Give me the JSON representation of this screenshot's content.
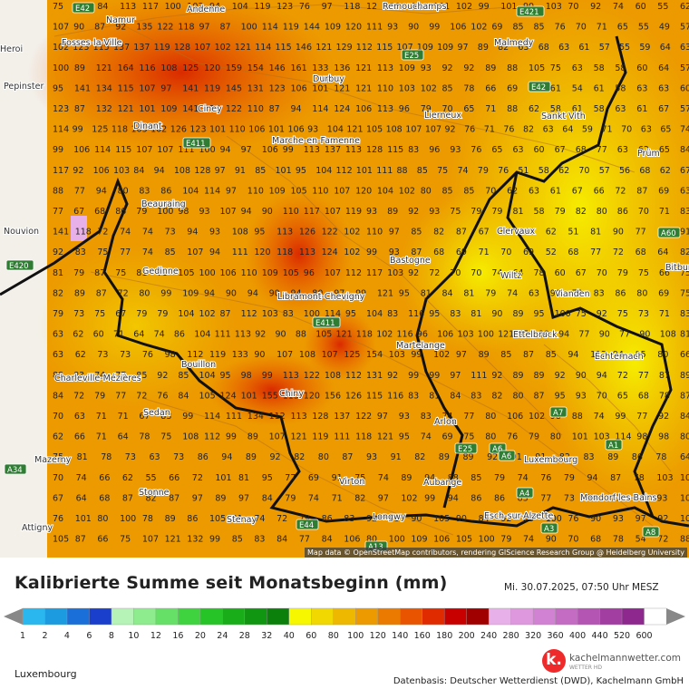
{
  "title": "Kalibrierte Summe seit Monatsbeginn (mm)",
  "timestamp": "Mi. 30.07.2025, 07:50 Uhr MESZ",
  "region": "Luxembourg",
  "datasource": "Datenbasis: Deutscher Wetterdienst (DWD), Kachelmann GmbH",
  "attribution": "Map data © OpenStreetMap contributors, rendering GIScience Research Group @ Heidelberg University",
  "logo": {
    "mark": "k.",
    "name": "kachelmannwetter.com",
    "sub": "WETTER HD"
  },
  "legend": {
    "ticks": [
      "1",
      "2",
      "4",
      "6",
      "8",
      "10",
      "12",
      "16",
      "20",
      "24",
      "28",
      "32",
      "40",
      "60",
      "80",
      "100",
      "120",
      "140",
      "160",
      "180",
      "200",
      "240",
      "280",
      "320",
      "360",
      "400",
      "440",
      "520",
      "600"
    ],
    "colors": [
      "#2ab6ee",
      "#1d9be0",
      "#1a6fd8",
      "#1a3fcc",
      "#b6f3b6",
      "#8eeb8e",
      "#67e067",
      "#3fd43f",
      "#27c427",
      "#19ad19",
      "#119611",
      "#0b800b",
      "#f7f700",
      "#f1d800",
      "#eeb800",
      "#ec9a00",
      "#ea7a00",
      "#e85400",
      "#e02a00",
      "#c80000",
      "#a00000",
      "#e8b0e8",
      "#de98de",
      "#d282d2",
      "#c46cc4",
      "#b455b4",
      "#a23ea2",
      "#8e288e",
      "#ffffff"
    ]
  },
  "places": [
    {
      "name": "Namur"
    },
    {
      "name": "Andenne"
    },
    {
      "name": "Remouchamps"
    },
    {
      "name": "Fosses-la-Ville"
    },
    {
      "name": "Malmedy"
    },
    {
      "name": "Durbuy"
    },
    {
      "name": "Ciney"
    },
    {
      "name": "Dinant"
    },
    {
      "name": "Lierneux"
    },
    {
      "name": "Sankt Vith"
    },
    {
      "name": "Marche-en-Famenne"
    },
    {
      "name": "Prüm"
    },
    {
      "name": "Beauraing"
    },
    {
      "name": "Clervaux"
    },
    {
      "name": "Gedinne"
    },
    {
      "name": "Bastogne"
    },
    {
      "name": "Wiltz"
    },
    {
      "name": "Vianden"
    },
    {
      "name": "Libramont-Chevigny"
    },
    {
      "name": "Ettelbruck"
    },
    {
      "name": "Echternach"
    },
    {
      "name": "Martelange"
    },
    {
      "name": "Bouillon"
    },
    {
      "name": "Charleville-Mézières"
    },
    {
      "name": "Chiny"
    },
    {
      "name": "Sedan"
    },
    {
      "name": "Arlon"
    },
    {
      "name": "Luxembourg"
    },
    {
      "name": "Mazerny"
    },
    {
      "name": "Virton"
    },
    {
      "name": "Aubange"
    },
    {
      "name": "Stonne"
    },
    {
      "name": "Mondorf-les-Bains"
    },
    {
      "name": "Esch-sur-Alzette"
    },
    {
      "name": "Stenay"
    },
    {
      "name": "Longwy"
    },
    {
      "name": "Attigny"
    },
    {
      "name": "Pepinster"
    },
    {
      "name": "Nouvion"
    },
    {
      "name": "Bitburg"
    },
    {
      "name": "Heroi"
    }
  ],
  "highways": [
    "E42",
    "E421",
    "E25",
    "E42",
    "E411",
    "E420",
    "E411",
    "A60",
    "E25",
    "A6",
    "A7",
    "A1",
    "A4",
    "A3",
    "A8",
    "A34",
    "E44",
    "A6",
    "A13"
  ],
  "grid_values": [
    [
      "75",
      "E42",
      "84",
      "113",
      "117",
      "100",
      "103",
      "94",
      "104",
      "119",
      "123",
      "76",
      "97",
      "118",
      "12",
      "96",
      "90",
      "101",
      "102",
      "99",
      "101",
      "90",
      "103",
      "70",
      "92",
      "74",
      "60",
      "55",
      "62"
    ],
    [
      "107",
      "90",
      "87",
      "92",
      "135",
      "122",
      "118",
      "97",
      "87",
      "100",
      "114",
      "119",
      "144",
      "109",
      "120",
      "111",
      "93",
      "90",
      "99",
      "106",
      "102",
      "69",
      "85",
      "85",
      "76",
      "70",
      "71",
      "65",
      "55",
      "49",
      "57"
    ],
    [
      "102",
      "123",
      "115",
      "137",
      "137",
      "119",
      "128",
      "107",
      "102",
      "121",
      "114",
      "115",
      "146",
      "121",
      "129",
      "112",
      "115",
      "107",
      "109",
      "109",
      "97",
      "89",
      "82",
      "63",
      "68",
      "63",
      "61",
      "57",
      "55",
      "59",
      "64",
      "63"
    ],
    [
      "100",
      "89",
      "121",
      "164",
      "116",
      "108",
      "125",
      "120",
      "159",
      "154",
      "146",
      "161",
      "133",
      "136",
      "121",
      "113",
      "109",
      "93",
      "92",
      "92",
      "89",
      "88",
      "105",
      "75",
      "63",
      "58",
      "58",
      "60",
      "64",
      "57"
    ],
    [
      "95",
      "141",
      "134",
      "115",
      "107",
      "97",
      "141",
      "119",
      "145",
      "131",
      "123",
      "106",
      "101",
      "121",
      "121",
      "110",
      "103",
      "102",
      "85",
      "78",
      "66",
      "69",
      "83",
      "61",
      "54",
      "61",
      "58",
      "63",
      "63",
      "60"
    ],
    [
      "123",
      "87",
      "132",
      "121",
      "101",
      "109",
      "141",
      "124",
      "122",
      "110",
      "87",
      "94",
      "114",
      "124",
      "106",
      "113",
      "96",
      "79",
      "70",
      "65",
      "71",
      "88",
      "62",
      "58",
      "61",
      "58",
      "63",
      "61",
      "67",
      "57"
    ],
    [
      "114",
      "99",
      "125",
      "118",
      "105",
      "102",
      "126",
      "123",
      "101",
      "110",
      "106",
      "101",
      "106",
      "93",
      "104",
      "121",
      "105",
      "108",
      "107",
      "107",
      "92",
      "76",
      "71",
      "76",
      "82",
      "63",
      "64",
      "59",
      "71",
      "70",
      "63",
      "65",
      "74"
    ],
    [
      "99",
      "106",
      "114",
      "115",
      "107",
      "107",
      "111",
      "100",
      "94",
      "97",
      "106",
      "99",
      "113",
      "137",
      "113",
      "128",
      "115",
      "83",
      "96",
      "93",
      "76",
      "65",
      "63",
      "60",
      "67",
      "68",
      "77",
      "63",
      "62",
      "65",
      "84"
    ],
    [
      "117",
      "92",
      "106",
      "103",
      "84",
      "94",
      "108",
      "128",
      "97",
      "91",
      "85",
      "101",
      "95",
      "104",
      "112",
      "101",
      "111",
      "88",
      "85",
      "75",
      "74",
      "79",
      "76",
      "51",
      "58",
      "62",
      "70",
      "57",
      "56",
      "68",
      "62",
      "67"
    ],
    [
      "88",
      "77",
      "94",
      "80",
      "83",
      "86",
      "104",
      "114",
      "97",
      "110",
      "109",
      "105",
      "110",
      "107",
      "120",
      "104",
      "102",
      "80",
      "85",
      "85",
      "70",
      "62",
      "63",
      "61",
      "67",
      "66",
      "72",
      "87",
      "69",
      "63"
    ],
    [
      "77",
      "67",
      "68",
      "86",
      "79",
      "100",
      "98",
      "93",
      "107",
      "94",
      "90",
      "110",
      "117",
      "107",
      "119",
      "93",
      "89",
      "92",
      "93",
      "75",
      "79",
      "79",
      "81",
      "58",
      "79",
      "82",
      "80",
      "86",
      "70",
      "71",
      "83"
    ],
    [
      "141",
      "118",
      "72",
      "74",
      "74",
      "73",
      "94",
      "93",
      "108",
      "95",
      "113",
      "126",
      "122",
      "102",
      "110",
      "97",
      "85",
      "82",
      "87",
      "67",
      "69",
      "63",
      "62",
      "51",
      "81",
      "90",
      "77",
      "66",
      "91"
    ],
    [
      "92",
      "83",
      "75",
      "77",
      "74",
      "85",
      "107",
      "94",
      "111",
      "120",
      "118",
      "113",
      "124",
      "102",
      "99",
      "93",
      "87",
      "68",
      "69",
      "71",
      "70",
      "69",
      "52",
      "68",
      "77",
      "72",
      "68",
      "64",
      "82"
    ],
    [
      "81",
      "79",
      "87",
      "75",
      "81",
      "79",
      "105",
      "100",
      "106",
      "110",
      "109",
      "105",
      "96",
      "107",
      "112",
      "117",
      "103",
      "92",
      "72",
      "70",
      "70",
      "74",
      "64",
      "78",
      "60",
      "67",
      "70",
      "79",
      "75",
      "66",
      "75"
    ],
    [
      "82",
      "89",
      "87",
      "72",
      "80",
      "99",
      "109",
      "94",
      "90",
      "94",
      "90",
      "94",
      "80",
      "97",
      "99",
      "121",
      "95",
      "81",
      "84",
      "81",
      "79",
      "74",
      "63",
      "90",
      "79",
      "83",
      "86",
      "80",
      "69",
      "75"
    ],
    [
      "79",
      "73",
      "75",
      "67",
      "79",
      "79",
      "104",
      "102",
      "87",
      "112",
      "103",
      "83",
      "100",
      "114",
      "95",
      "104",
      "83",
      "116",
      "95",
      "83",
      "81",
      "90",
      "89",
      "95",
      "100",
      "75",
      "92",
      "75",
      "73",
      "71",
      "83"
    ],
    [
      "63",
      "62",
      "60",
      "71",
      "64",
      "74",
      "86",
      "104",
      "111",
      "113",
      "92",
      "90",
      "88",
      "105",
      "121",
      "118",
      "102",
      "116",
      "96",
      "106",
      "103",
      "100",
      "121",
      "95",
      "80",
      "94",
      "77",
      "90",
      "77",
      "90",
      "108",
      "81"
    ],
    [
      "63",
      "62",
      "73",
      "73",
      "76",
      "98",
      "112",
      "119",
      "133",
      "90",
      "107",
      "108",
      "107",
      "125",
      "154",
      "103",
      "99",
      "102",
      "97",
      "89",
      "85",
      "87",
      "85",
      "94",
      "117",
      "94",
      "85",
      "80",
      "66"
    ],
    [
      "88",
      "83",
      "74",
      "77",
      "85",
      "92",
      "85",
      "104",
      "95",
      "98",
      "99",
      "113",
      "122",
      "108",
      "112",
      "131",
      "92",
      "99",
      "99",
      "97",
      "111",
      "92",
      "89",
      "89",
      "92",
      "90",
      "94",
      "72",
      "77",
      "87",
      "89"
    ],
    [
      "84",
      "72",
      "79",
      "77",
      "72",
      "76",
      "84",
      "105",
      "124",
      "101",
      "155",
      "113",
      "120",
      "156",
      "126",
      "115",
      "116",
      "83",
      "81",
      "84",
      "83",
      "82",
      "80",
      "87",
      "95",
      "93",
      "70",
      "65",
      "68",
      "78",
      "87"
    ],
    [
      "70",
      "63",
      "71",
      "71",
      "67",
      "83",
      "99",
      "114",
      "111",
      "134",
      "112",
      "113",
      "128",
      "137",
      "122",
      "97",
      "93",
      "83",
      "74",
      "77",
      "80",
      "106",
      "102",
      "98",
      "88",
      "74",
      "99",
      "77",
      "92",
      "84"
    ],
    [
      "62",
      "66",
      "71",
      "64",
      "78",
      "75",
      "108",
      "112",
      "99",
      "89",
      "107",
      "121",
      "119",
      "111",
      "118",
      "121",
      "95",
      "74",
      "69",
      "75",
      "80",
      "76",
      "79",
      "80",
      "101",
      "103",
      "114",
      "98",
      "98",
      "80"
    ],
    [
      "75",
      "81",
      "78",
      "73",
      "63",
      "73",
      "86",
      "94",
      "89",
      "92",
      "82",
      "80",
      "87",
      "93",
      "91",
      "82",
      "89",
      "89",
      "92",
      "91",
      "91",
      "82",
      "83",
      "89",
      "86",
      "78",
      "64"
    ],
    [
      "70",
      "74",
      "66",
      "62",
      "55",
      "66",
      "72",
      "101",
      "81",
      "95",
      "77",
      "69",
      "91",
      "75",
      "74",
      "89",
      "94",
      "88",
      "85",
      "79",
      "74",
      "76",
      "79",
      "94",
      "87",
      "78",
      "103",
      "102"
    ],
    [
      "67",
      "64",
      "68",
      "87",
      "82",
      "87",
      "97",
      "89",
      "97",
      "84",
      "79",
      "74",
      "71",
      "82",
      "97",
      "102",
      "99",
      "94",
      "86",
      "86",
      "83",
      "77",
      "73",
      "77",
      "77",
      "89",
      "93",
      "100"
    ],
    [
      "76",
      "101",
      "80",
      "100",
      "78",
      "89",
      "86",
      "105",
      "91",
      "74",
      "72",
      "79",
      "86",
      "83",
      "92",
      "83",
      "90",
      "105",
      "90",
      "84",
      "92",
      "85",
      "100",
      "76",
      "90",
      "93",
      "97",
      "92",
      "106"
    ],
    [
      "105",
      "87",
      "66",
      "75",
      "107",
      "121",
      "132",
      "99",
      "85",
      "83",
      "84",
      "77",
      "84",
      "106",
      "80",
      "100",
      "109",
      "106",
      "105",
      "100",
      "79",
      "74",
      "90",
      "70",
      "68",
      "78",
      "54",
      "72",
      "88"
    ]
  ]
}
